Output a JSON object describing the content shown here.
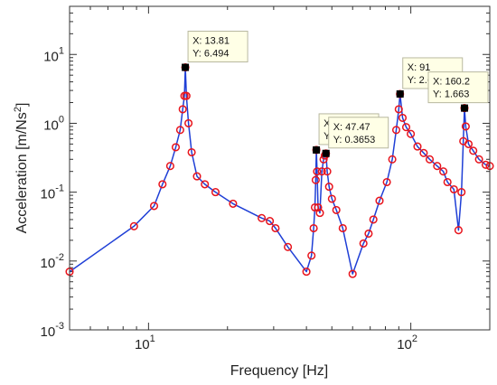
{
  "chart_data": {
    "type": "line",
    "xscale": "log",
    "yscale": "log",
    "xlim": [
      5,
      200
    ],
    "ylim": [
      0.001,
      50
    ],
    "xlabel": "Frequency [Hz]",
    "ylabel_main": "Acceleration [m/Ns",
    "ylabel_sup": "2",
    "ylabel_end": "]",
    "x_ticks": [
      {
        "value": 10,
        "base": "10",
        "exp": "1"
      },
      {
        "value": 100,
        "base": "10",
        "exp": "2"
      }
    ],
    "y_ticks": [
      {
        "value": 0.001,
        "base": "10",
        "exp": "-3"
      },
      {
        "value": 0.01,
        "base": "10",
        "exp": "-2"
      },
      {
        "value": 0.1,
        "base": "10",
        "exp": "-1"
      },
      {
        "value": 1,
        "base": "10",
        "exp": "0"
      },
      {
        "value": 10,
        "base": "10",
        "exp": "1"
      }
    ],
    "grid": false,
    "colors": {
      "line": "#1f3fd6",
      "marker": "#e8141c",
      "datatip": "#000000",
      "tip_bg": "#ffffe6"
    },
    "series": [
      {
        "line": "solid",
        "marker": "open-circle",
        "x": [
          5,
          8.8,
          10.5,
          11.3,
          12.1,
          12.7,
          13.2,
          13.5,
          13.7,
          13.81,
          13.95,
          14.2,
          14.6,
          15.3,
          16.4,
          18,
          21,
          27,
          29,
          30.5,
          34,
          40,
          41.8,
          42.6,
          43.1,
          43.4,
          43.63,
          43.9,
          44.3,
          45.0,
          45.8,
          46.5,
          47.0,
          47.47,
          48.0,
          48.8,
          50,
          52,
          55,
          60,
          66,
          69,
          72,
          76,
          81,
          85,
          88,
          90,
          91,
          93,
          96,
          100,
          106,
          112,
          118,
          126,
          133,
          138,
          146,
          152,
          156,
          158.5,
          160.2,
          162,
          166,
          173,
          182,
          193,
          200
        ],
        "y": [
          0.007,
          0.032,
          0.063,
          0.13,
          0.24,
          0.45,
          0.8,
          1.6,
          2.5,
          6.494,
          2.5,
          1.0,
          0.38,
          0.17,
          0.13,
          0.1,
          0.068,
          0.042,
          0.038,
          0.03,
          0.016,
          0.007,
          0.012,
          0.03,
          0.06,
          0.15,
          0.4101,
          0.2,
          0.06,
          0.05,
          0.2,
          0.3,
          0.34,
          0.3653,
          0.2,
          0.12,
          0.08,
          0.055,
          0.03,
          0.0065,
          0.018,
          0.025,
          0.04,
          0.075,
          0.14,
          0.3,
          0.8,
          1.6,
          2.668,
          1.2,
          0.88,
          0.7,
          0.46,
          0.37,
          0.3,
          0.24,
          0.2,
          0.14,
          0.11,
          0.028,
          0.1,
          0.55,
          1.663,
          0.9,
          0.5,
          0.4,
          0.3,
          0.25,
          0.24
        ]
      }
    ],
    "datatips": [
      {
        "x": 13.81,
        "y": 6.494,
        "label_x": "X: 13.81",
        "label_y": "Y: 6.494"
      },
      {
        "x": 43.63,
        "y": 0.4101,
        "label_x": "X: 43.63",
        "label_y": "Y: 0.4101"
      },
      {
        "x": 47.47,
        "y": 0.3653,
        "label_x": "X: 47.47",
        "label_y": "Y: 0.3653"
      },
      {
        "x": 91,
        "y": 2.668,
        "label_x": "X: 91",
        "label_y": "Y: 2.668"
      },
      {
        "x": 160.2,
        "y": 1.663,
        "label_x": "X: 160.2",
        "label_y": "Y: 1.663"
      }
    ]
  }
}
